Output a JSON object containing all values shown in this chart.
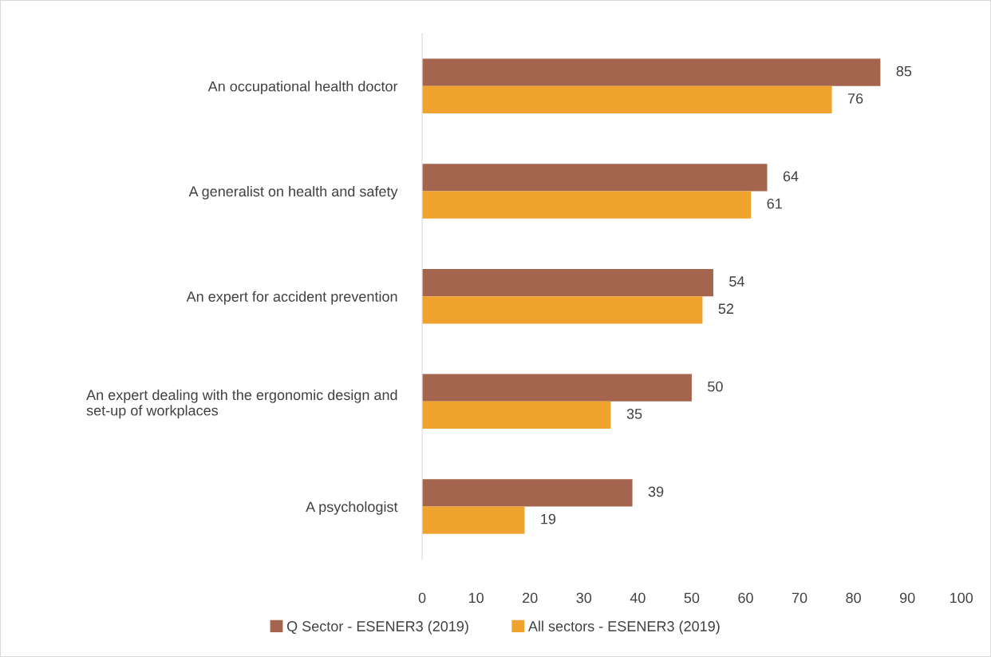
{
  "chart_data": {
    "type": "bar",
    "orientation": "horizontal",
    "categories": [
      "An occupational health doctor",
      "A generalist on health and safety",
      "An expert for accident prevention",
      "An expert dealing with the ergonomic design and\nset-up of workplaces",
      "A psychologist"
    ],
    "series": [
      {
        "name": "Q Sector - ESENER3 (2019)",
        "color": "#a5644e",
        "values": [
          85,
          64,
          54,
          50,
          39
        ]
      },
      {
        "name": "All sectors - ESENER3 (2019)",
        "color": "#f0a22e",
        "values": [
          76,
          61,
          52,
          35,
          19
        ]
      }
    ],
    "xlim": [
      0,
      100
    ],
    "xticks": [
      0,
      10,
      20,
      30,
      40,
      50,
      60,
      70,
      80,
      90,
      100
    ],
    "grid": false,
    "legend": "bottom",
    "data_labels": true
  }
}
